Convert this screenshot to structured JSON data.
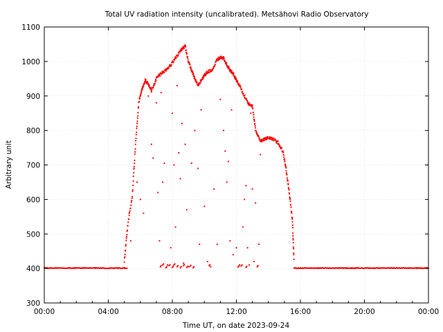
{
  "chart_data": {
    "type": "scatter",
    "title": "Total UV radiation intensity (uncalibrated). Metsähovi Radio Observatory",
    "xlabel": "Time UT, on date 2023-09-24",
    "ylabel": "Arbitrary unit",
    "xlim": [
      0,
      24
    ],
    "ylim": [
      300,
      1100
    ],
    "xticks": [
      {
        "value": 0,
        "label": "00:00"
      },
      {
        "value": 4,
        "label": "04:00"
      },
      {
        "value": 8,
        "label": "08:00"
      },
      {
        "value": 12,
        "label": "12:00"
      },
      {
        "value": 16,
        "label": "16:00"
      },
      {
        "value": 20,
        "label": "20:00"
      },
      {
        "value": 24,
        "label": "00:00"
      }
    ],
    "yticks": [
      300,
      400,
      500,
      600,
      700,
      800,
      900,
      1000,
      1100
    ],
    "grid": true,
    "marker_color": "#ff0000",
    "baseline": {
      "value": 401,
      "ranges": [
        [
          0,
          5.2
        ],
        [
          15.6,
          24
        ]
      ]
    },
    "series": [
      {
        "envelope_x": [
          5.0,
          5.2,
          5.5,
          5.7,
          5.9,
          6.1,
          6.3,
          6.5,
          6.7,
          7.0,
          7.3,
          7.6,
          7.9,
          8.2,
          8.5,
          8.8,
          9.0,
          9.2,
          9.4,
          9.6,
          9.8,
          10.0,
          10.2,
          10.5,
          10.8,
          11.0,
          11.2,
          11.4,
          11.6,
          11.8,
          12.0,
          12.2,
          12.5,
          12.8,
          13.0,
          13.2,
          13.5,
          13.8,
          14.0,
          14.3,
          14.6,
          14.9,
          15.1,
          15.3,
          15.5,
          15.6
        ],
        "envelope_y": [
          420,
          520,
          610,
          760,
          880,
          920,
          945,
          935,
          915,
          950,
          965,
          975,
          990,
          1010,
          1030,
          1045,
          1000,
          975,
          950,
          930,
          945,
          960,
          970,
          975,
          1005,
          1012,
          1010,
          990,
          975,
          965,
          945,
          930,
          900,
          875,
          870,
          800,
          770,
          775,
          780,
          775,
          765,
          740,
          690,
          620,
          540,
          420
        ],
        "scatter_points": [
          [
            5.3,
            560
          ],
          [
            5.4,
            480
          ],
          [
            5.6,
            690
          ],
          [
            5.8,
            650
          ],
          [
            6.0,
            600
          ],
          [
            6.2,
            560
          ],
          [
            6.5,
            900
          ],
          [
            6.7,
            760
          ],
          [
            6.8,
            720
          ],
          [
            7.0,
            880
          ],
          [
            7.1,
            620
          ],
          [
            7.2,
            480
          ],
          [
            7.3,
            910
          ],
          [
            7.4,
            650
          ],
          [
            7.5,
            705
          ],
          [
            7.7,
            410
          ],
          [
            7.9,
            460
          ],
          [
            8.0,
            850
          ],
          [
            8.1,
            700
          ],
          [
            8.2,
            520
          ],
          [
            8.3,
            930
          ],
          [
            8.4,
            735
          ],
          [
            8.5,
            660
          ],
          [
            8.6,
            820
          ],
          [
            8.7,
            415
          ],
          [
            8.8,
            760
          ],
          [
            8.9,
            570
          ],
          [
            9.0,
            405
          ],
          [
            9.2,
            705
          ],
          [
            9.4,
            800
          ],
          [
            9.6,
            690
          ],
          [
            9.7,
            470
          ],
          [
            9.8,
            860
          ],
          [
            10.0,
            580
          ],
          [
            10.2,
            420
          ],
          [
            10.4,
            405
          ],
          [
            10.6,
            630
          ],
          [
            10.8,
            470
          ],
          [
            11.0,
            890
          ],
          [
            11.2,
            800
          ],
          [
            11.3,
            740
          ],
          [
            11.4,
            650
          ],
          [
            11.5,
            710
          ],
          [
            11.6,
            480
          ],
          [
            11.7,
            860
          ],
          [
            11.8,
            440
          ],
          [
            12.0,
            460
          ],
          [
            12.2,
            410
          ],
          [
            12.4,
            520
          ],
          [
            12.5,
            600
          ],
          [
            12.6,
            640
          ],
          [
            12.7,
            460
          ],
          [
            12.8,
            410
          ],
          [
            12.9,
            850
          ],
          [
            13.0,
            630
          ],
          [
            13.1,
            420
          ],
          [
            13.2,
            590
          ],
          [
            13.4,
            470
          ],
          [
            13.5,
            730
          ]
        ],
        "dip_points": [
          [
            7.25,
            405
          ],
          [
            7.4,
            410
          ],
          [
            7.6,
            402
          ],
          [
            7.8,
            408
          ],
          [
            8.0,
            403
          ],
          [
            8.1,
            410
          ],
          [
            8.3,
            405
          ],
          [
            8.5,
            402
          ],
          [
            8.7,
            408
          ],
          [
            8.9,
            403
          ],
          [
            9.1,
            406
          ],
          [
            9.3,
            402
          ],
          [
            10.3,
            408
          ],
          [
            12.1,
            404
          ],
          [
            12.3,
            407
          ],
          [
            12.6,
            403
          ],
          [
            13.3,
            405
          ]
        ]
      }
    ]
  }
}
